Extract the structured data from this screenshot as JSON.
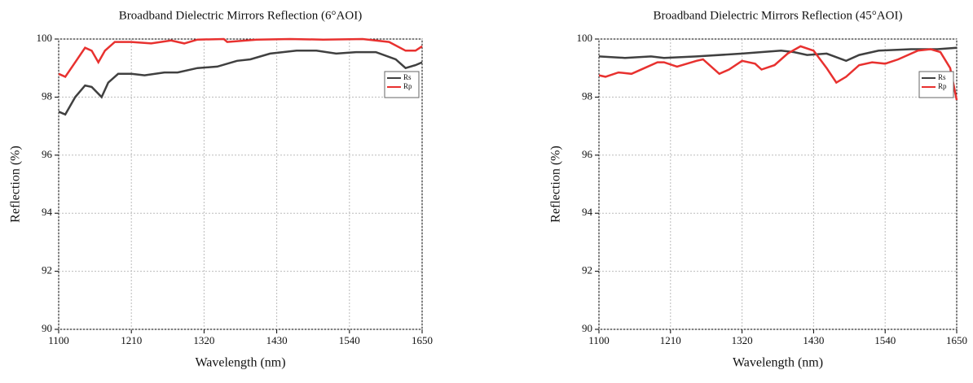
{
  "chart_data": [
    {
      "type": "line",
      "title": "Broadband Dielectric Mirrors Reflection (6°AOI)",
      "x_label": "Wavelength (nm)",
      "y_label": "Reflection (%)",
      "xlim": [
        1100,
        1650
      ],
      "xticks": [
        1100,
        1210,
        1320,
        1430,
        1540,
        1650
      ],
      "ylim": [
        90,
        100
      ],
      "yticks": [
        90,
        92,
        94,
        96,
        98,
        100
      ],
      "grid": true,
      "legend": "upper right",
      "series": [
        {
          "name": "Rs",
          "color": "#404040",
          "x": [
            1100,
            1110,
            1125,
            1140,
            1150,
            1165,
            1175,
            1190,
            1210,
            1230,
            1260,
            1280,
            1310,
            1340,
            1370,
            1390,
            1420,
            1460,
            1490,
            1520,
            1550,
            1580,
            1610,
            1625,
            1640,
            1650
          ],
          "values": [
            97.5,
            97.4,
            98.0,
            98.4,
            98.35,
            98.0,
            98.5,
            98.8,
            98.8,
            98.75,
            98.85,
            98.85,
            99.0,
            99.05,
            99.25,
            99.3,
            99.5,
            99.6,
            99.6,
            99.5,
            99.55,
            99.55,
            99.3,
            99.0,
            99.1,
            99.2
          ]
        },
        {
          "name": "Rp",
          "color": "#e8312f",
          "x": [
            1100,
            1110,
            1125,
            1140,
            1150,
            1160,
            1170,
            1185,
            1210,
            1240,
            1270,
            1290,
            1310,
            1350,
            1355,
            1400,
            1450,
            1500,
            1560,
            1600,
            1625,
            1640,
            1650
          ],
          "values": [
            98.8,
            98.7,
            99.2,
            99.7,
            99.6,
            99.2,
            99.6,
            99.9,
            99.9,
            99.85,
            99.95,
            99.85,
            99.98,
            100,
            99.9,
            99.98,
            100,
            99.98,
            100,
            99.9,
            99.6,
            99.6,
            99.75
          ]
        }
      ]
    },
    {
      "type": "line",
      "title": "Broadband Dielectric Mirrors Reflection (45°AOI)",
      "x_label": "Wavelength (nm)",
      "y_label": "Reflection (%)",
      "xlim": [
        1100,
        1650
      ],
      "xticks": [
        1100,
        1210,
        1320,
        1430,
        1540,
        1650
      ],
      "ylim": [
        90,
        100
      ],
      "yticks": [
        90,
        92,
        94,
        96,
        98,
        100
      ],
      "grid": true,
      "legend": "upper right",
      "series": [
        {
          "name": "Rs",
          "color": "#404040",
          "x": [
            1100,
            1140,
            1180,
            1200,
            1250,
            1320,
            1380,
            1400,
            1420,
            1450,
            1480,
            1500,
            1530,
            1580,
            1620,
            1650
          ],
          "values": [
            99.4,
            99.35,
            99.4,
            99.35,
            99.4,
            99.5,
            99.6,
            99.55,
            99.45,
            99.5,
            99.25,
            99.45,
            99.6,
            99.65,
            99.65,
            99.7
          ]
        },
        {
          "name": "Rp",
          "color": "#e8312f",
          "x": [
            1100,
            1110,
            1130,
            1150,
            1170,
            1190,
            1200,
            1220,
            1250,
            1260,
            1285,
            1300,
            1320,
            1340,
            1350,
            1370,
            1390,
            1410,
            1430,
            1450,
            1465,
            1480,
            1500,
            1520,
            1540,
            1560,
            1590,
            1610,
            1625,
            1640,
            1650
          ],
          "values": [
            98.75,
            98.7,
            98.85,
            98.8,
            99.0,
            99.2,
            99.2,
            99.05,
            99.25,
            99.3,
            98.8,
            98.95,
            99.25,
            99.15,
            98.95,
            99.1,
            99.5,
            99.75,
            99.6,
            99.0,
            98.5,
            98.7,
            99.1,
            99.2,
            99.15,
            99.3,
            99.6,
            99.65,
            99.55,
            99.0,
            97.9
          ]
        }
      ]
    }
  ]
}
